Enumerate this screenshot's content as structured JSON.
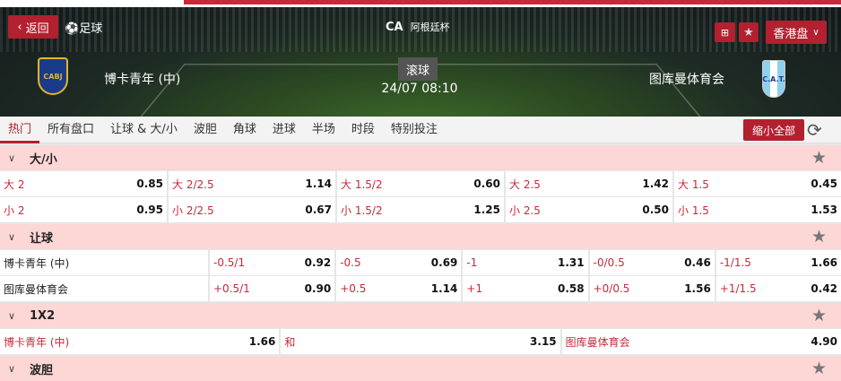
{
  "header": {
    "back": "返回",
    "sport": "足球",
    "league": "阿根廷杯",
    "league_logo": "CA",
    "market": "香港盘",
    "status": "滚球",
    "datetime": "24/07 08:10",
    "home": "博卡青年 (中)",
    "away": "图库曼体育会",
    "home_crest": "CABJ",
    "away_crest": "C.A.T."
  },
  "tabs": [
    "热门",
    "所有盘口",
    "让球 & 大/小",
    "波胆",
    "角球",
    "进球",
    "半场",
    "时段",
    "特别投注"
  ],
  "collapse_all": "缩小全部",
  "sections": {
    "ou": {
      "title": "大/小",
      "rows": [
        [
          {
            "l": "大 2",
            "v": "0.85"
          },
          {
            "l": "大 2/2.5",
            "v": "1.14"
          },
          {
            "l": "大 1.5/2",
            "v": "0.60"
          },
          {
            "l": "大 2.5",
            "v": "1.42"
          },
          {
            "l": "大 1.5",
            "v": "0.45"
          }
        ],
        [
          {
            "l": "小 2",
            "v": "0.95"
          },
          {
            "l": "小 2/2.5",
            "v": "0.67"
          },
          {
            "l": "小 1.5/2",
            "v": "1.25"
          },
          {
            "l": "小 2.5",
            "v": "0.50"
          },
          {
            "l": "小 1.5",
            "v": "1.53"
          }
        ]
      ]
    },
    "hdp": {
      "title": "让球",
      "rows": [
        {
          "team": "博卡青年 (中)",
          "cells": [
            {
              "l": "-0.5/1",
              "v": "0.92"
            },
            {
              "l": "-0.5",
              "v": "0.69"
            },
            {
              "l": "-1",
              "v": "1.31"
            },
            {
              "l": "-0/0.5",
              "v": "0.46"
            },
            {
              "l": "-1/1.5",
              "v": "1.66"
            }
          ]
        },
        {
          "team": "图库曼体育会",
          "cells": [
            {
              "l": "+0.5/1",
              "v": "0.90"
            },
            {
              "l": "+0.5",
              "v": "1.14"
            },
            {
              "l": "+1",
              "v": "0.58"
            },
            {
              "l": "+0/0.5",
              "v": "1.56"
            },
            {
              "l": "+1/1.5",
              "v": "0.42"
            }
          ]
        }
      ]
    },
    "x12": {
      "title": "1X2",
      "cells": [
        {
          "l": "博卡青年 (中)",
          "v": "1.66"
        },
        {
          "l": "和",
          "v": "3.15"
        },
        {
          "l": "图库曼体育会",
          "v": "4.90"
        }
      ]
    },
    "cs": {
      "title": "波胆"
    }
  }
}
